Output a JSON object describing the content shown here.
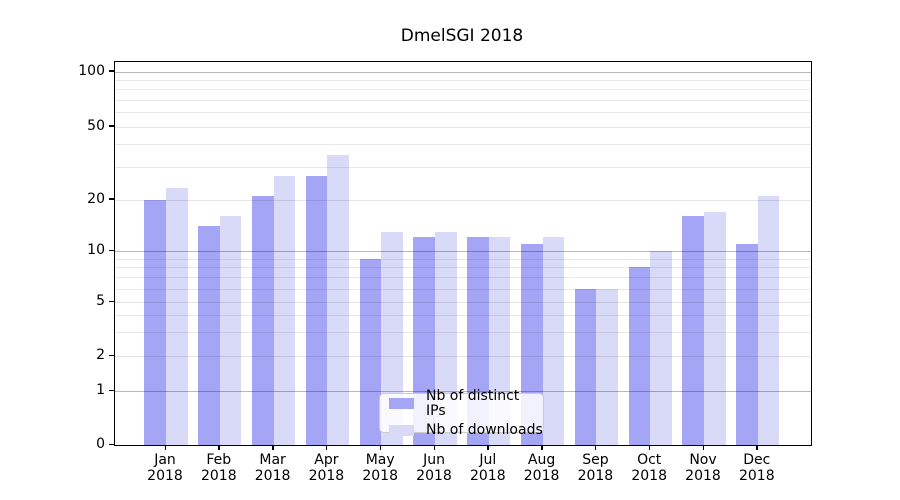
{
  "chart_data": {
    "type": "bar",
    "title": "DmelSGI 2018",
    "categories": [
      "Jan 2018",
      "Feb 2018",
      "Mar 2018",
      "Apr 2018",
      "May 2018",
      "Jun 2018",
      "Jul 2018",
      "Aug 2018",
      "Sep 2018",
      "Oct 2018",
      "Nov 2018",
      "Dec 2018"
    ],
    "series": [
      {
        "name": "Nb of distinct IPs",
        "color": "#a5a5f6",
        "values": [
          20,
          14,
          21,
          27,
          9,
          12,
          12,
          11,
          6,
          8,
          16,
          11
        ]
      },
      {
        "name": "Nb of downloads",
        "color": "#d9d9f8",
        "values": [
          23,
          16,
          27,
          35,
          13,
          13,
          12,
          12,
          6,
          10,
          17,
          21
        ]
      }
    ],
    "xlabel": "",
    "ylabel": "",
    "yscale": "symlog",
    "ylim": [
      0,
      115
    ],
    "yticks": [
      0,
      1,
      2,
      5,
      10,
      20,
      50,
      100
    ],
    "minor_gridlines": [
      3,
      4,
      6,
      7,
      8,
      9,
      30,
      40,
      60,
      70,
      80,
      90
    ],
    "grid": true,
    "legend_position": "lower center"
  }
}
